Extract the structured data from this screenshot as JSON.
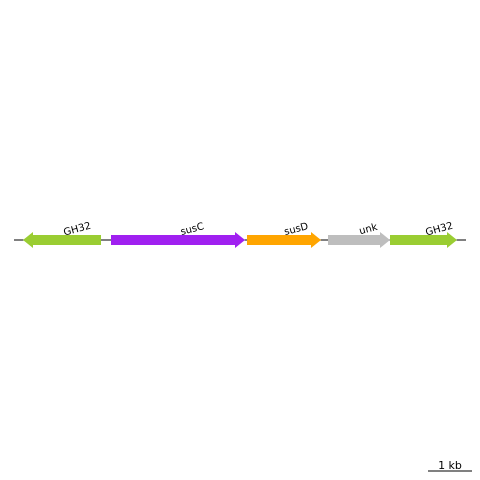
{
  "diagram": {
    "type": "gene-cluster-map",
    "backbone_color": "#000000",
    "genes": [
      {
        "label": "GH32",
        "strand": "-",
        "color": "#9acd32",
        "label_angle": -15
      },
      {
        "label": "susC",
        "strand": "+",
        "color": "#a020f0",
        "label_angle": -15
      },
      {
        "label": "susD",
        "strand": "+",
        "color": "#ffa500",
        "label_angle": -15
      },
      {
        "label": "unk",
        "strand": "+",
        "color": "#bebebe",
        "label_angle": -15
      },
      {
        "label": "GH32",
        "strand": "+",
        "color": "#9acd32",
        "label_angle": -15
      }
    ],
    "scale_bar": {
      "label": "1 kb"
    }
  }
}
